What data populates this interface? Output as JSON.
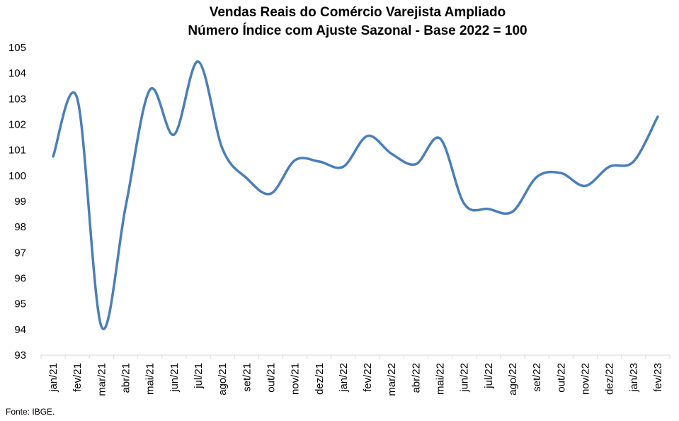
{
  "chart_data": {
    "type": "line",
    "title": "Vendas Reais do Comércio Varejista Ampliado",
    "subtitle": "Número Índice com Ajuste Sazonal - Base 2022 = 100",
    "xlabel": "",
    "ylabel": "",
    "ylim": [
      93,
      105
    ],
    "yticks": [
      "93",
      "94",
      "95",
      "96",
      "97",
      "98",
      "99",
      "100",
      "101",
      "102",
      "103",
      "104",
      "105"
    ],
    "grid": false,
    "legend": "none",
    "categories": [
      "jan/21",
      "fev/21",
      "mar/21",
      "abr/21",
      "mai/21",
      "jun/21",
      "jul/21",
      "ago/21",
      "set/21",
      "out/21",
      "nov/21",
      "dez/21",
      "jan/22",
      "fev/22",
      "mar/22",
      "abr/22",
      "mai/22",
      "jun/22",
      "jul/22",
      "ago/22",
      "set/22",
      "out/22",
      "nov/22",
      "dez/22",
      "jan/23",
      "fev/23"
    ],
    "series": [
      {
        "color": "#4a7ebb",
        "values": [
          100.75,
          103.0,
          94.1,
          98.8,
          103.35,
          101.6,
          104.45,
          101.05,
          99.9,
          99.3,
          100.6,
          100.55,
          100.35,
          101.55,
          100.85,
          100.45,
          101.45,
          98.9,
          98.7,
          98.6,
          99.95,
          100.1,
          99.6,
          100.35,
          100.55,
          102.3
        ]
      }
    ]
  },
  "source": "Fonte: IBGE."
}
